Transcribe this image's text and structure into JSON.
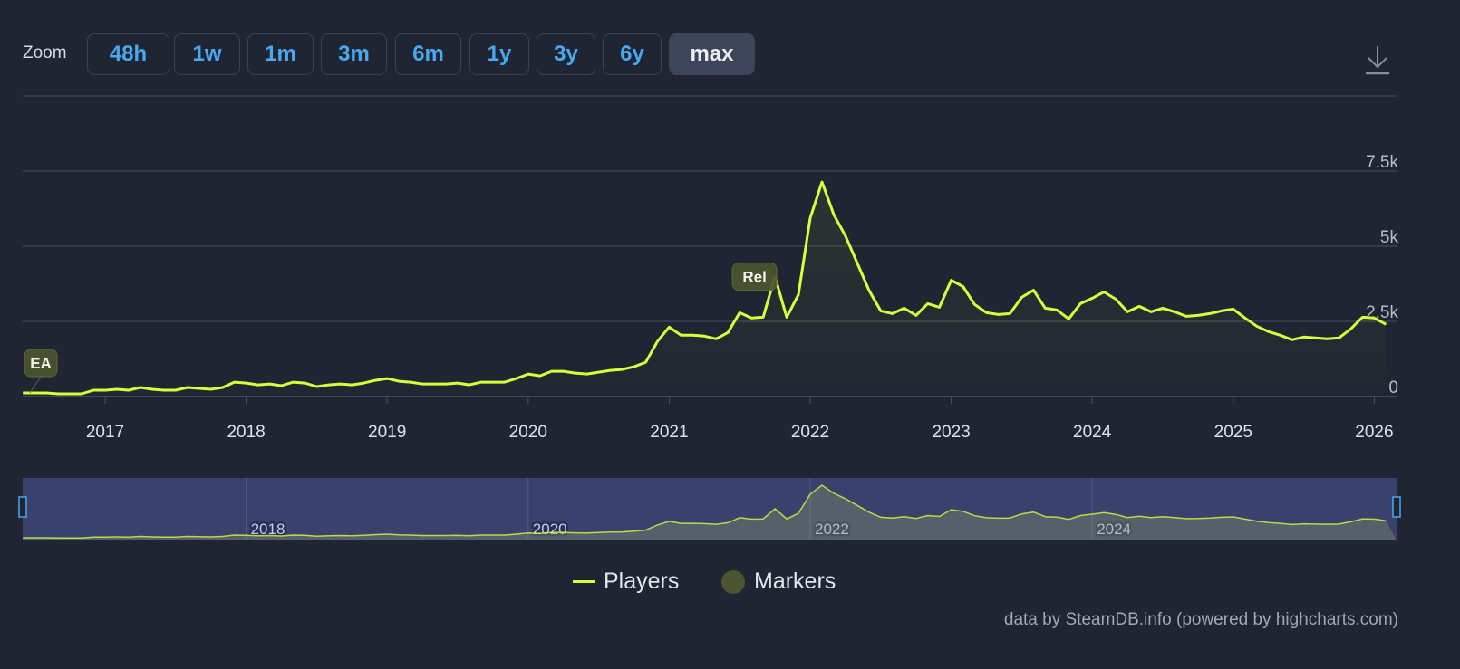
{
  "toolbar": {
    "zoom_label": "Zoom",
    "buttons": [
      "48h",
      "1w",
      "1m",
      "3m",
      "6m",
      "1y",
      "3y",
      "6y",
      "max"
    ],
    "active": "max",
    "download_icon": "download-icon"
  },
  "colors": {
    "players": "#d6ff3c",
    "markers": "#4b5530",
    "navigator": "#3a416c",
    "accent": "#4aa8ee"
  },
  "chart_data": {
    "type": "line",
    "y_ticks": [
      {
        "v": 0,
        "label": "0"
      },
      {
        "v": 2500,
        "label": "2.5k"
      },
      {
        "v": 5000,
        "label": "5k"
      },
      {
        "v": 7500,
        "label": "7.5k"
      },
      {
        "v": 10000,
        "label": ""
      }
    ],
    "ylim": [
      0,
      10000
    ],
    "x_range": [
      "2016-06",
      "2026-02"
    ],
    "x_ticks": [
      "2017",
      "2018",
      "2019",
      "2020",
      "2021",
      "2022",
      "2023",
      "2024",
      "2025",
      "2026"
    ],
    "navigator_ticks": [
      "2018",
      "2020",
      "2022",
      "2024"
    ],
    "grid": true,
    "series": [
      {
        "name": "Players",
        "start": "2016-06",
        "interval": "month",
        "values": [
          120,
          120,
          120,
          90,
          90,
          90,
          210,
          210,
          240,
          210,
          300,
          240,
          210,
          210,
          300,
          270,
          240,
          300,
          480,
          450,
          390,
          420,
          360,
          480,
          450,
          330,
          390,
          420,
          390,
          450,
          540,
          600,
          510,
          480,
          420,
          420,
          420,
          450,
          390,
          480,
          480,
          480,
          600,
          750,
          690,
          840,
          840,
          780,
          750,
          810,
          870,
          900,
          990,
          1140,
          1830,
          2310,
          2040,
          2040,
          2010,
          1920,
          2130,
          2790,
          2610,
          2640,
          3990,
          2640,
          3390,
          5940,
          7140,
          6060,
          5340,
          4440,
          3540,
          2850,
          2760,
          2940,
          2700,
          3090,
          2970,
          3870,
          3660,
          3060,
          2790,
          2730,
          2760,
          3300,
          3540,
          2940,
          2880,
          2580,
          3090,
          3270,
          3480,
          3240,
          2820,
          3000,
          2820,
          2940,
          2820,
          2670,
          2700,
          2760,
          2850,
          2910,
          2610,
          2340,
          2160,
          2040,
          1890,
          1980,
          1950,
          1920,
          1950,
          2250,
          2640,
          2610,
          2400
        ]
      }
    ],
    "markers": [
      {
        "label": "EA",
        "date": "2016-06"
      },
      {
        "label": "Rel",
        "date": "2021-10"
      }
    ],
    "legend": {
      "position": "bottom",
      "items": [
        "Players",
        "Markers"
      ]
    }
  },
  "credit": "data by SteamDB.info (powered by highcharts.com)"
}
